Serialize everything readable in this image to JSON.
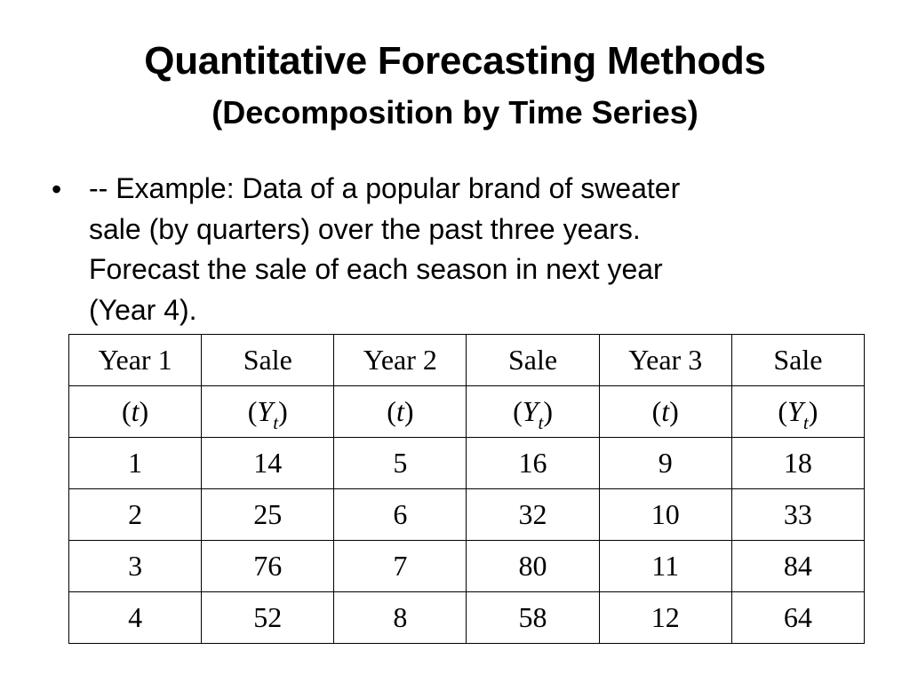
{
  "title": "Quantitative Forecasting Methods",
  "subtitle": "(Decomposition by Time Series)",
  "bullet": {
    "marker": "•",
    "lines": [
      "-- Example: Data of a popular brand of sweater",
      "sale (by quarters) over the past three years.",
      "Forecast the sale of each season in next year",
      "(Year 4)."
    ]
  },
  "table": {
    "headers": [
      "Year 1",
      "Sale",
      "Year 2",
      "Sale",
      "Year 3",
      "Sale"
    ],
    "subheaders": [
      {
        "open": "(",
        "var": "t",
        "sub": "",
        "close": ")"
      },
      {
        "open": "(",
        "var": "Y",
        "sub": "t",
        "close": ")"
      },
      {
        "open": "(",
        "var": "t",
        "sub": "",
        "close": ")"
      },
      {
        "open": "(",
        "var": "Y",
        "sub": "t",
        "close": ")"
      },
      {
        "open": "(",
        "var": "t",
        "sub": "",
        "close": ")"
      },
      {
        "open": "(",
        "var": "Y",
        "sub": "t",
        "close": ")"
      }
    ],
    "rows": [
      [
        "1",
        "14",
        "5",
        "16",
        "9",
        "18"
      ],
      [
        "2",
        "25",
        "6",
        "32",
        "10",
        "33"
      ],
      [
        "3",
        "76",
        "7",
        "80",
        "11",
        "84"
      ],
      [
        "4",
        "52",
        "8",
        "58",
        "12",
        "64"
      ]
    ]
  }
}
